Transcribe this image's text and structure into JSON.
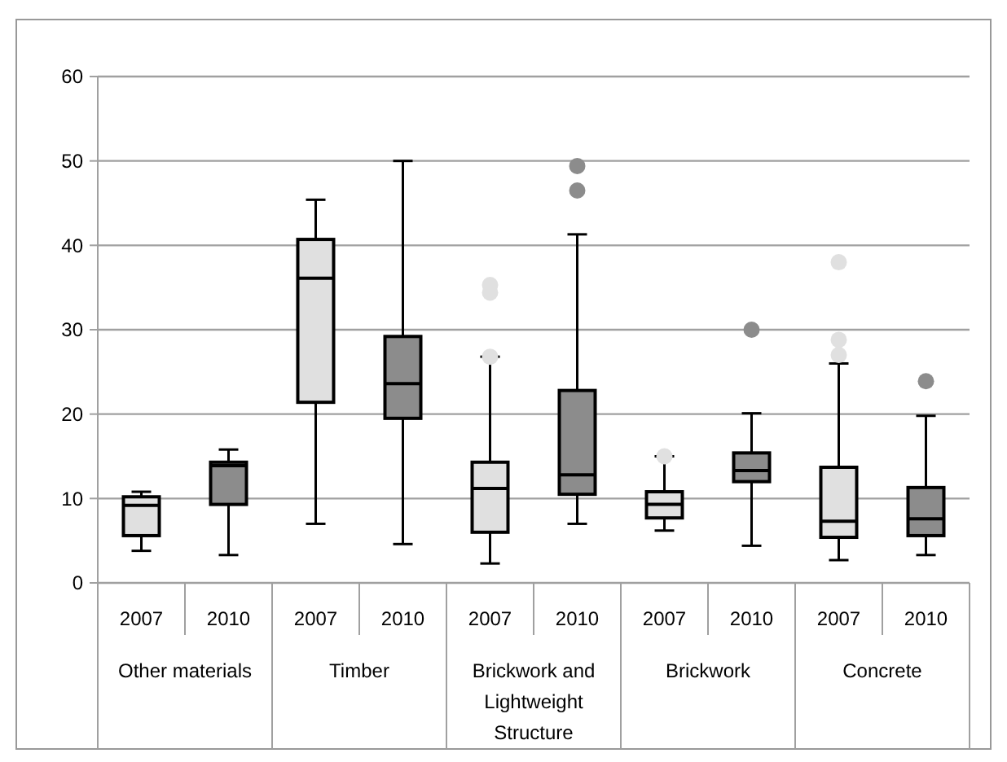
{
  "chart_data": {
    "type": "box",
    "categories": [
      "2007",
      "2010",
      "2007",
      "2010",
      "2007",
      "2010",
      "2007",
      "2010",
      "2007",
      "2010"
    ],
    "colors": [
      "#e0e0e0",
      "#8c8c8c",
      "#e0e0e0",
      "#8c8c8c",
      "#e0e0e0",
      "#8c8c8c",
      "#e0e0e0",
      "#8c8c8c",
      "#e0e0e0",
      "#8c8c8c"
    ],
    "boxes": [
      {
        "low": 3.8,
        "q1": 5.6,
        "median": 9.2,
        "q3": 10.2,
        "high": 10.8
      },
      {
        "low": 3.3,
        "q1": 9.3,
        "median": 13.9,
        "q3": 14.3,
        "high": 15.8
      },
      {
        "low": 7.0,
        "q1": 21.4,
        "median": 36.1,
        "q3": 40.7,
        "high": 45.4
      },
      {
        "low": 4.6,
        "q1": 19.5,
        "median": 23.6,
        "q3": 29.2,
        "high": 50.0
      },
      {
        "low": 2.3,
        "q1": 6.0,
        "median": 11.2,
        "q3": 14.3,
        "high": 26.8,
        "outliers": [
          26.8,
          34.4,
          35.3
        ]
      },
      {
        "low": 7.0,
        "q1": 10.5,
        "median": 12.8,
        "q3": 22.8,
        "high": 41.3,
        "outliers": [
          46.5,
          49.4
        ]
      },
      {
        "low": 6.2,
        "q1": 7.7,
        "median": 9.3,
        "q3": 10.8,
        "high": 15.0,
        "outliers": [
          15.0
        ]
      },
      {
        "low": 4.4,
        "q1": 12.0,
        "median": 13.3,
        "q3": 15.4,
        "high": 20.1,
        "outliers": [
          30.0
        ]
      },
      {
        "low": 2.7,
        "q1": 5.4,
        "median": 7.3,
        "q3": 13.7,
        "high": 26.0,
        "outliers": [
          27.0,
          28.8,
          38.0
        ]
      },
      {
        "low": 3.3,
        "q1": 5.6,
        "median": 7.6,
        "q3": 11.3,
        "high": 19.8,
        "outliers": [
          23.9
        ]
      }
    ],
    "annotations": [
      "Other materials",
      "Timber",
      "Brickwork and Lightweight Structure",
      "Brickwork",
      "Concrete"
    ],
    "ylim": [
      0,
      60
    ],
    "yticks": [
      0,
      10,
      20,
      30,
      40,
      50,
      60
    ],
    "grid": "y"
  }
}
